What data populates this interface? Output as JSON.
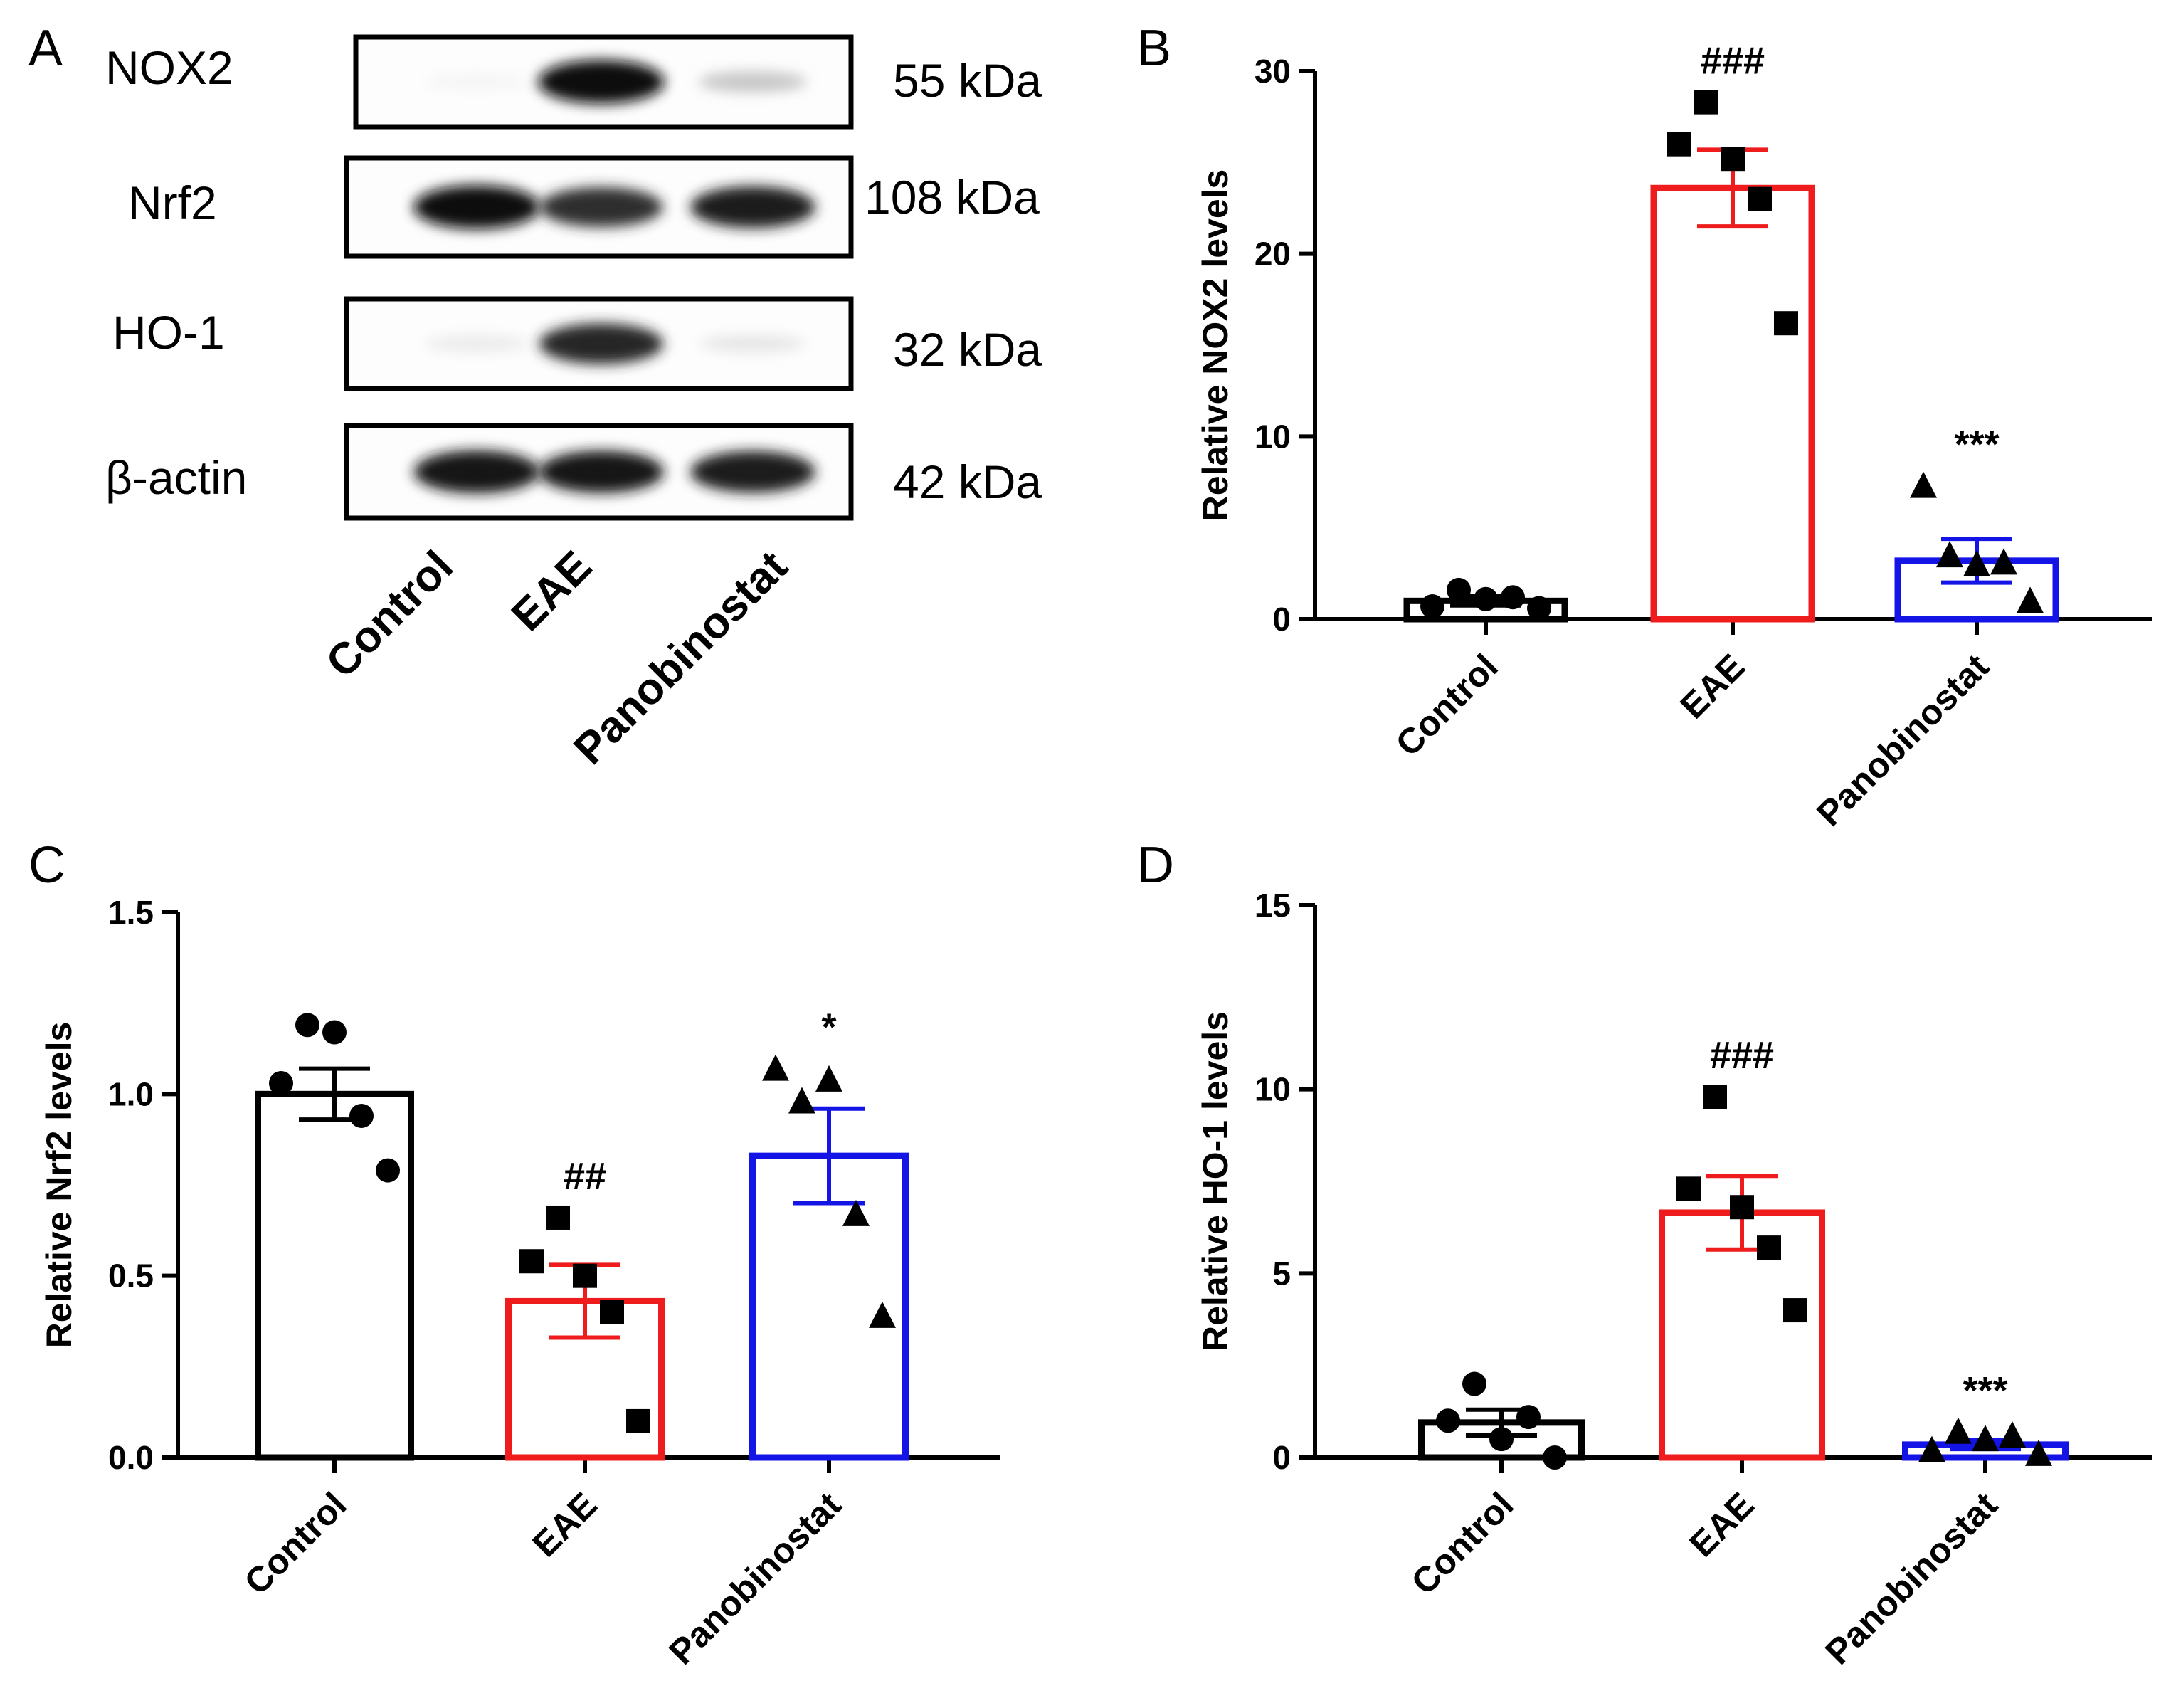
{
  "blot": {
    "panel_label": "A",
    "rows": [
      {
        "protein": "NOX2",
        "kda": "55 kDa",
        "bands": [
          0.04,
          0.95,
          0.22
        ]
      },
      {
        "protein": "Nrf2",
        "kda": "108 kDa",
        "bands": [
          0.95,
          0.82,
          0.88
        ]
      },
      {
        "protein": "HO-1",
        "kda": "32 kDa",
        "bands": [
          0.08,
          0.85,
          0.1
        ]
      },
      {
        "protein": "β-actin",
        "kda": "42 kDa",
        "bands": [
          0.92,
          0.9,
          0.88
        ]
      }
    ],
    "lanes": [
      "Control",
      "EAE",
      "Panobinostat"
    ]
  },
  "colors": {
    "Control": "#000000",
    "EAE": "#ee1c1c",
    "Panobinostat": "#1414e6"
  },
  "chart_data": [
    {
      "panel_label": "B",
      "type": "bar",
      "title": "",
      "ylabel": "Relative NOX2 levels",
      "xlabel": "",
      "categories": [
        "Control",
        "EAE",
        "Panobinostat"
      ],
      "values": [
        1.0,
        23.6,
        3.2
      ],
      "sem": [
        0.25,
        2.1,
        1.2
      ],
      "ylim": [
        0,
        30
      ],
      "yticks": [
        "0",
        "10",
        "20",
        "30"
      ],
      "points": [
        [
          0.7,
          1.6,
          1.1,
          1.2,
          0.6
        ],
        [
          26.0,
          28.3,
          25.2,
          23.0,
          16.2
        ],
        [
          7.3,
          3.5,
          3.0,
          3.1,
          1.0
        ]
      ],
      "significance": [
        "",
        "###",
        "***"
      ]
    },
    {
      "panel_label": "C",
      "type": "bar",
      "title": "",
      "ylabel": "Relative Nrf2 levels",
      "xlabel": "",
      "categories": [
        "Control",
        "EAE",
        "Panobinostat"
      ],
      "values": [
        1.0,
        0.43,
        0.83
      ],
      "sem": [
        0.07,
        0.1,
        0.13
      ],
      "ylim": [
        0,
        1.5
      ],
      "yticks": [
        "0.0",
        "0.5",
        "1.0",
        "1.5"
      ],
      "points": [
        [
          1.03,
          1.19,
          1.17,
          0.94,
          0.79
        ],
        [
          0.54,
          0.66,
          0.5,
          0.4,
          0.1
        ],
        [
          1.07,
          0.98,
          1.04,
          0.67,
          0.39
        ]
      ],
      "significance": [
        "",
        "##",
        "*"
      ]
    },
    {
      "panel_label": "D",
      "type": "bar",
      "title": "",
      "ylabel": "Relative HO-1 levels",
      "xlabel": "",
      "categories": [
        "Control",
        "EAE",
        "Panobinostat"
      ],
      "values": [
        0.95,
        6.65,
        0.35
      ],
      "sem": [
        0.35,
        1.0,
        0.12
      ],
      "ylim": [
        0,
        15
      ],
      "yticks": [
        "0",
        "5",
        "10",
        "15"
      ],
      "points": [
        [
          1.0,
          2.0,
          0.5,
          1.1,
          0.0
        ],
        [
          7.3,
          9.8,
          6.8,
          5.7,
          4.0
        ],
        [
          0.2,
          0.7,
          0.5,
          0.6,
          0.1
        ]
      ],
      "significance": [
        "",
        "###",
        "***"
      ]
    }
  ]
}
